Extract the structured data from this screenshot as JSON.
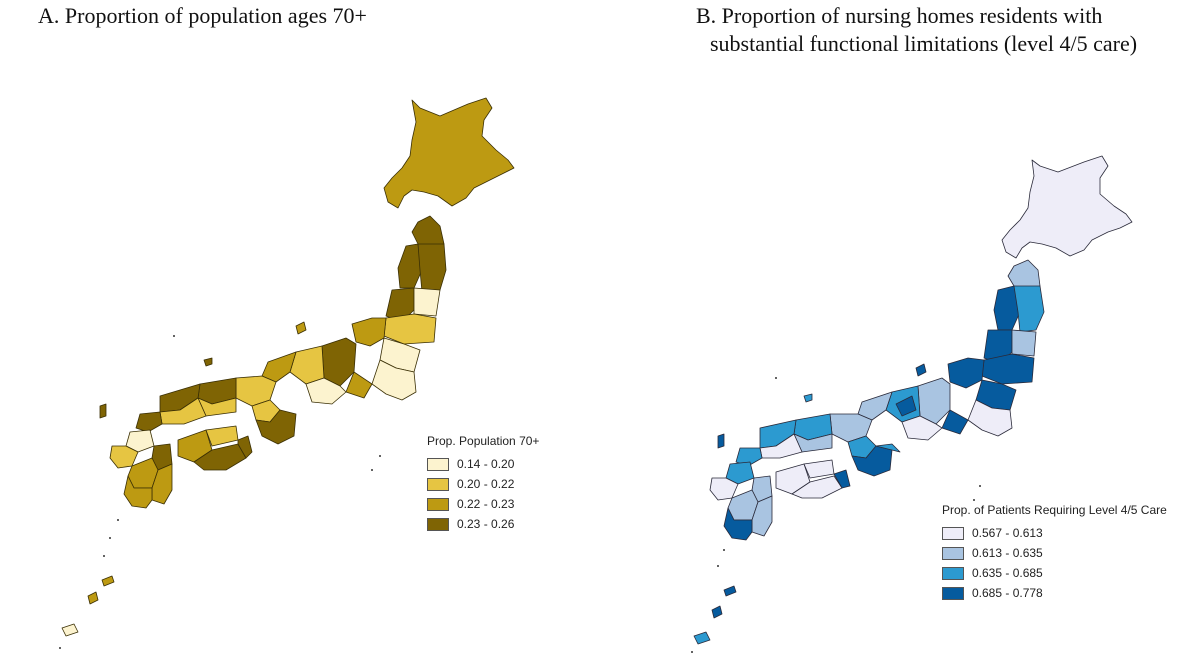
{
  "panel_a": {
    "title": "A. Proportion of population ages 70+",
    "legend": {
      "title": "Prop. Population 70+",
      "items": [
        {
          "label": "0.14 - 0.20",
          "color": "#fcf3cf"
        },
        {
          "label": "0.20 - 0.22",
          "color": "#e6c542"
        },
        {
          "label": "0.22 - 0.23",
          "color": "#bd9a12"
        },
        {
          "label": "0.23 - 0.26",
          "color": "#7f6404"
        }
      ]
    }
  },
  "panel_b": {
    "title_line1": "B. Proportion of nursing homes residents with",
    "title_line2": "substantial functional limitations (level 4/5 care)",
    "legend": {
      "title": "Prop. of Patients Requiring Level 4/5 Care",
      "items": [
        {
          "label": "0.567 - 0.613",
          "color": "#eeedf8"
        },
        {
          "label": "0.613 - 0.635",
          "color": "#a9c4e1"
        },
        {
          "label": "0.635 - 0.685",
          "color": "#2c9ad0"
        },
        {
          "label": "0.685 - 0.778",
          "color": "#065b9e"
        }
      ]
    }
  }
}
